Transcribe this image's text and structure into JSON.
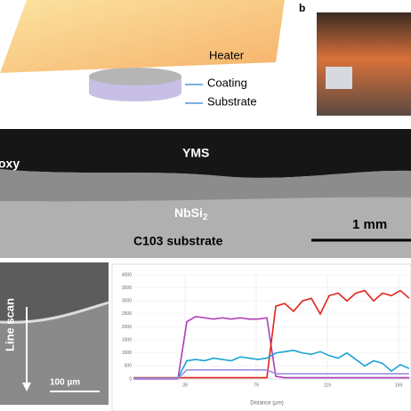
{
  "panel_a": {
    "heater": "Heater",
    "coating": "Coating",
    "substrate": "Substrate"
  },
  "panel_b": {
    "label": "b"
  },
  "cross_section": {
    "epoxy": "oxy",
    "yms": "YMS",
    "nbsi2": {
      "base": "NbSi",
      "sub": "2"
    },
    "scale": "1 mm",
    "substrate": "C103 substrate"
  },
  "line_scan": {
    "label": "Line scan",
    "scale": "100 µm"
  },
  "chart_data": {
    "type": "line",
    "x_label": "Distance (µm)",
    "x": [
      10,
      15,
      20,
      25,
      30,
      35,
      40,
      45,
      50,
      55,
      60,
      65,
      70,
      75,
      80,
      85,
      90,
      95,
      100,
      105,
      110,
      115,
      120,
      125,
      130,
      135,
      140,
      145,
      150,
      155,
      160,
      165
    ],
    "xlim": [
      10,
      166
    ],
    "xticks": [
      39,
      79,
      119,
      159
    ],
    "ylim": [
      0,
      4000
    ],
    "yticks": [
      0,
      500,
      1000,
      1500,
      2000,
      2500,
      3000,
      3500,
      4000
    ],
    "grid": true,
    "series": [
      {
        "color": "#b03cb8",
        "values": [
          0,
          0,
          0,
          0,
          0,
          0,
          2200,
          2400,
          2350,
          2300,
          2350,
          2300,
          2350,
          2300,
          2300,
          2350,
          100,
          50,
          50,
          50,
          50,
          50,
          50,
          50,
          50,
          50,
          50,
          50,
          50,
          50,
          50,
          50
        ]
      },
      {
        "color": "#e0241c",
        "values": [
          50,
          50,
          50,
          50,
          50,
          50,
          50,
          50,
          50,
          50,
          50,
          50,
          50,
          50,
          50,
          50,
          2800,
          2900,
          2600,
          3000,
          3100,
          2500,
          3200,
          3300,
          3000,
          3300,
          3400,
          3000,
          3300,
          3200,
          3400,
          3100
        ]
      },
      {
        "color": "#1aa3d6",
        "values": [
          30,
          30,
          30,
          30,
          30,
          30,
          700,
          750,
          700,
          800,
          750,
          700,
          850,
          800,
          750,
          800,
          1000,
          1050,
          1100,
          1000,
          950,
          1050,
          900,
          800,
          1000,
          750,
          500,
          700,
          600,
          300,
          550,
          400
        ]
      },
      {
        "color": "#9a8fe0",
        "values": [
          20,
          20,
          20,
          20,
          20,
          20,
          350,
          350,
          350,
          350,
          350,
          350,
          350,
          350,
          350,
          350,
          200,
          200,
          200,
          200,
          200,
          200,
          200,
          200,
          200,
          200,
          200,
          200,
          200,
          200,
          200,
          200
        ]
      }
    ]
  }
}
